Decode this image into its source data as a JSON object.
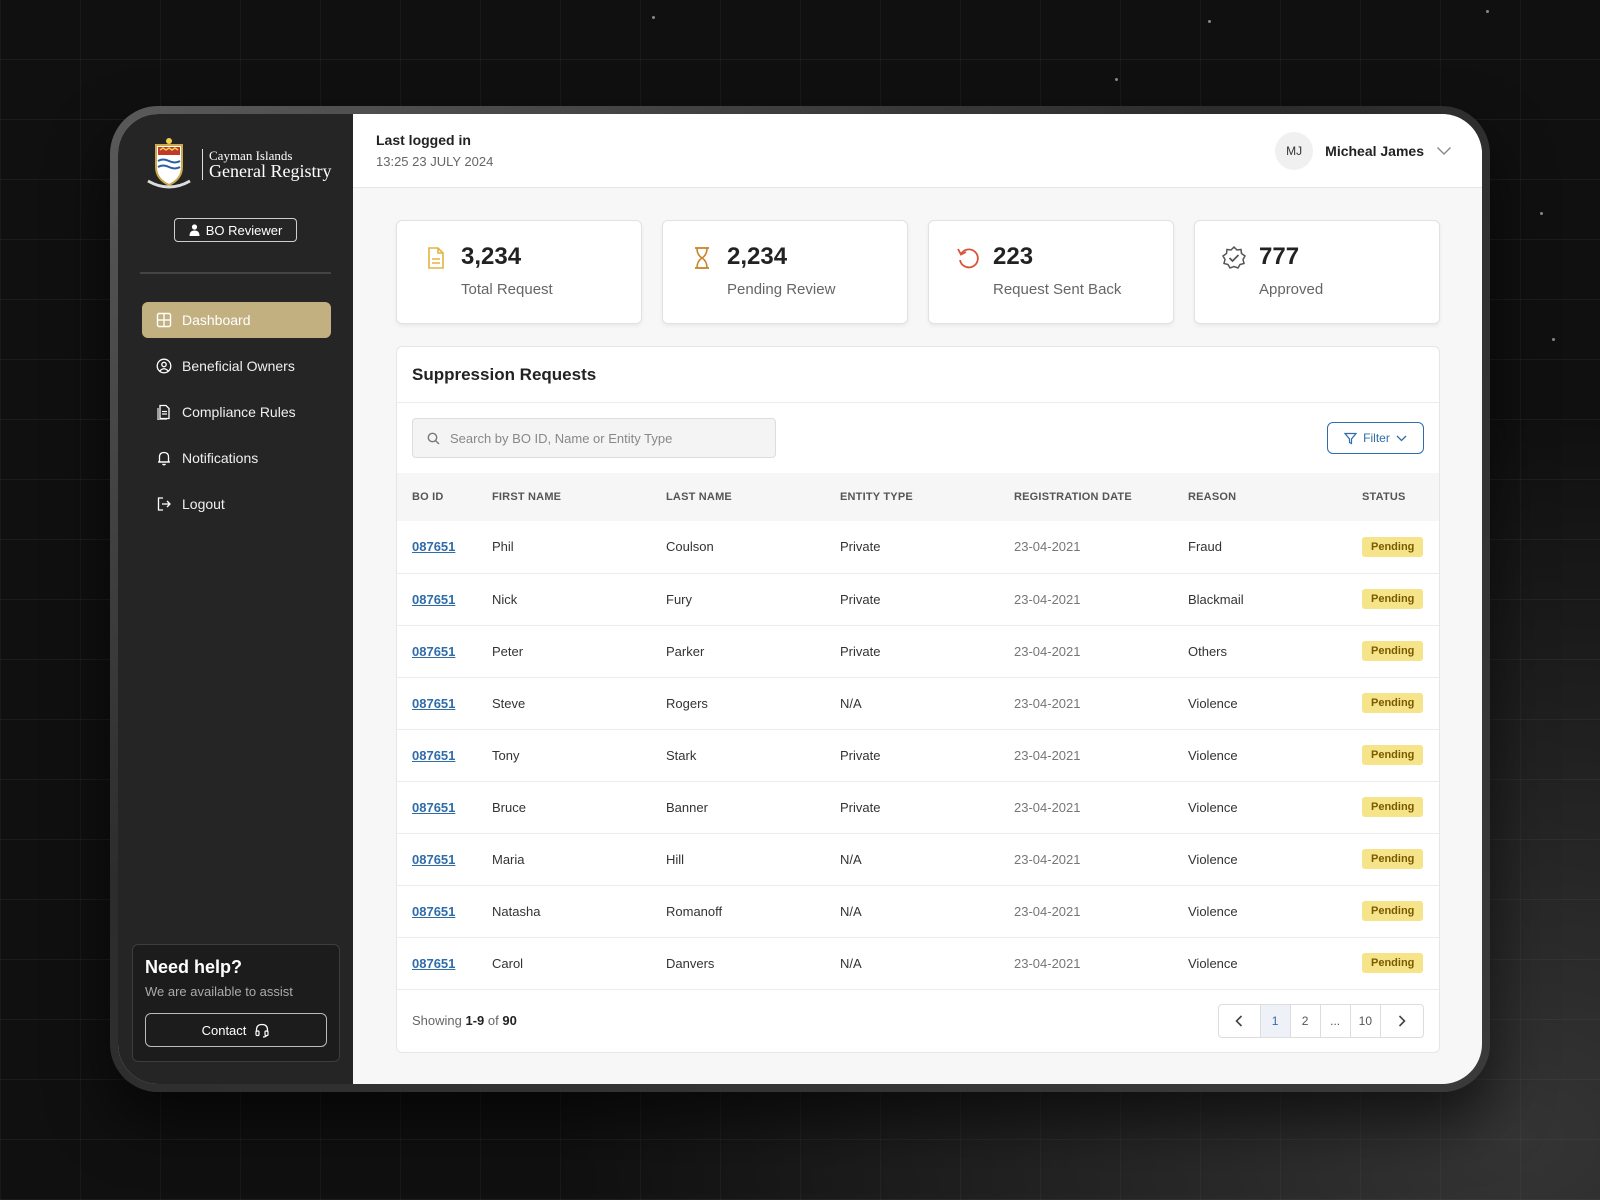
{
  "brand": {
    "line1": "Cayman Islands",
    "line2": "General Registry"
  },
  "role_label": "BO Reviewer",
  "nav": [
    {
      "label": "Dashboard",
      "icon": "grid-icon",
      "active": true
    },
    {
      "label": "Beneficial Owners",
      "icon": "user-circle-icon",
      "active": false
    },
    {
      "label": "Compliance Rules",
      "icon": "document-icon",
      "active": false
    },
    {
      "label": "Notifications",
      "icon": "bell-icon",
      "active": false
    },
    {
      "label": "Logout",
      "icon": "logout-icon",
      "active": false
    }
  ],
  "help": {
    "title": "Need help?",
    "subtitle": "We are available to assist",
    "button": "Contact"
  },
  "header": {
    "last_label": "Last logged in",
    "last_time": "13:25 23 JULY 2024",
    "user_initials": "MJ",
    "user_name": "Micheal James"
  },
  "stats": [
    {
      "value": "3,234",
      "label": "Total Request",
      "icon": "file-icon",
      "color": "#e3b341"
    },
    {
      "value": "2,234",
      "label": "Pending Review",
      "icon": "hourglass-icon",
      "color": "#c9852b"
    },
    {
      "value": "223",
      "label": "Request Sent Back",
      "icon": "undo-icon",
      "color": "#d9533a"
    },
    {
      "value": "777",
      "label": "Approved",
      "icon": "badge-check-icon",
      "color": "#555555"
    }
  ],
  "table": {
    "title": "Suppression Requests",
    "search_placeholder": "Search by BO ID, Name or Entity Type",
    "filter_label": "Filter",
    "columns": [
      "BO ID",
      "FIRST NAME",
      "LAST NAME",
      "ENTITY TYPE",
      "REGISTRATION DATE",
      "REASON",
      "STATUS"
    ],
    "rows": [
      {
        "id": "087651",
        "first": "Phil",
        "last": "Coulson",
        "entity": "Private",
        "date": "23-04-2021",
        "reason": "Fraud",
        "status": "Pending"
      },
      {
        "id": "087651",
        "first": "Nick",
        "last": "Fury",
        "entity": "Private",
        "date": "23-04-2021",
        "reason": "Blackmail",
        "status": "Pending"
      },
      {
        "id": "087651",
        "first": "Peter",
        "last": "Parker",
        "entity": "Private",
        "date": "23-04-2021",
        "reason": "Others",
        "status": "Pending"
      },
      {
        "id": "087651",
        "first": "Steve",
        "last": "Rogers",
        "entity": "N/A",
        "date": "23-04-2021",
        "reason": "Violence",
        "status": "Pending"
      },
      {
        "id": "087651",
        "first": "Tony",
        "last": "Stark",
        "entity": "Private",
        "date": "23-04-2021",
        "reason": "Violence",
        "status": "Pending"
      },
      {
        "id": "087651",
        "first": "Bruce",
        "last": "Banner",
        "entity": "Private",
        "date": "23-04-2021",
        "reason": "Violence",
        "status": "Pending"
      },
      {
        "id": "087651",
        "first": "Maria",
        "last": "Hill",
        "entity": "N/A",
        "date": "23-04-2021",
        "reason": "Violence",
        "status": "Pending"
      },
      {
        "id": "087651",
        "first": "Natasha",
        "last": "Romanoff",
        "entity": "N/A",
        "date": "23-04-2021",
        "reason": "Violence",
        "status": "Pending"
      },
      {
        "id": "087651",
        "first": "Carol",
        "last": "Danvers",
        "entity": "N/A",
        "date": "23-04-2021",
        "reason": "Violence",
        "status": "Pending"
      }
    ],
    "showing_prefix": "Showing",
    "showing_range": "1-9",
    "showing_of": "of",
    "showing_total": "90",
    "pages": [
      "1",
      "2",
      "...",
      "10"
    ],
    "current_page": "1"
  },
  "colors": {
    "accent": "#c2b081",
    "link": "#2f6ca8",
    "pending": "#f6e48a",
    "sidebar": "#252525"
  }
}
